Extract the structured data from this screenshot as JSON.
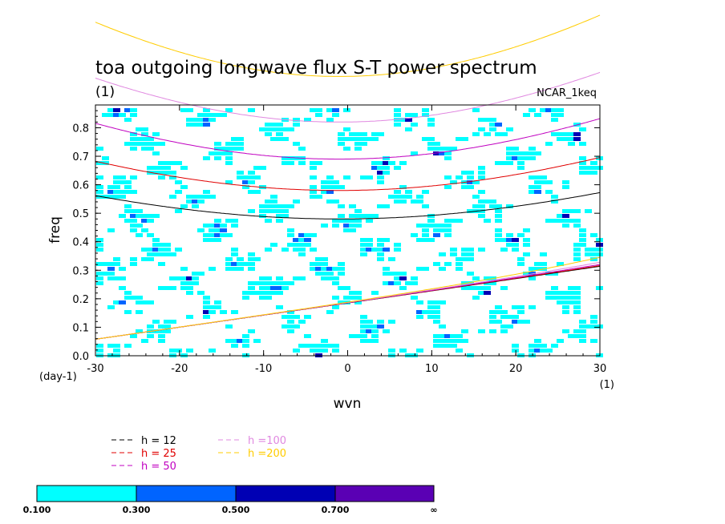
{
  "chart_data": {
    "type": "heatmap",
    "title": "toa outgoing longwave flux S-T power spectrum",
    "subtitle_left": "(1)",
    "subtitle_right": "NCAR_1keq",
    "xlabel": "wvn",
    "ylabel": "freq",
    "x_unit_label": "(1)",
    "y_unit_label": "(day-1)",
    "xlim": [
      -30,
      30
    ],
    "ylim": [
      0,
      0.88
    ],
    "x_ticks": [
      -30,
      -20,
      -10,
      0,
      10,
      20,
      30
    ],
    "x_tick_labels": [
      "-30",
      "-20",
      "-10",
      "0",
      "10",
      "20",
      "30"
    ],
    "y_ticks": [
      0,
      0.1,
      0.2,
      0.3,
      0.4,
      0.5,
      0.6,
      0.7,
      0.8
    ],
    "y_tick_labels": [
      "0.0",
      "0.1",
      "0.2",
      "0.3",
      "0.4",
      "0.5",
      "0.6",
      "0.7",
      "0.8"
    ],
    "contour_levels": [
      0.1,
      0.3,
      0.5,
      0.7
    ],
    "colorbar": {
      "labels": [
        "0.100",
        "0.300",
        "0.500",
        "0.700",
        "∞"
      ],
      "colors": [
        "#00ffff",
        "#0064ff",
        "#0000b4",
        "#5a00b4"
      ]
    },
    "series": [
      {
        "name": "h = 12",
        "color": "#000000",
        "ew_freq_at_zero": 0.48
      },
      {
        "name": "h = 25",
        "color": "#e00000",
        "ew_freq_at_zero": 0.58
      },
      {
        "name": "h = 50",
        "color": "#c000c0",
        "ew_freq_at_zero": 0.69
      },
      {
        "name": "h =100",
        "color": "#e088e0",
        "ew_freq_at_zero": 0.82
      },
      {
        "name": "h =200",
        "color": "#ffcc00",
        "ew_freq_at_zero": 0.98
      }
    ],
    "legend_text": {
      "h12": "h = 12",
      "h25": "h = 25",
      "h50": "h = 50",
      "h100": "h =100",
      "h200": "h =200"
    }
  }
}
